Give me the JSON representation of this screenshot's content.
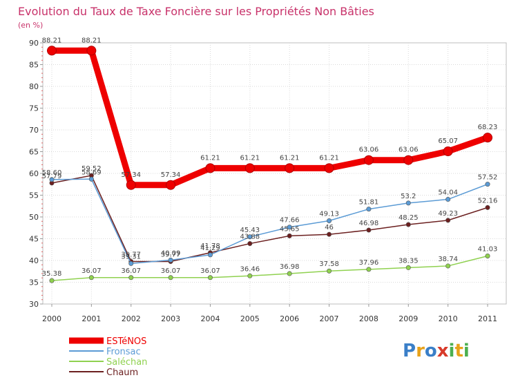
{
  "chart_data": {
    "type": "line",
    "title": "Evolution du Taux de Taxe Foncière sur les Propriétés Non Bâties",
    "ylabel": "(en %)",
    "xlabel": "",
    "ylim": [
      30,
      90
    ],
    "yticks": [
      "30",
      "35",
      "40",
      "45",
      "50",
      "55",
      "60",
      "65",
      "70",
      "75",
      "80",
      "85",
      "90"
    ],
    "categories": [
      "2000",
      "2001",
      "2002",
      "2003",
      "2004",
      "2005",
      "2006",
      "2007",
      "2008",
      "2009",
      "2010",
      "2011"
    ],
    "series": [
      {
        "name": "ESTéNOS",
        "color": "#ee0000",
        "values": [
          88.21,
          88.21,
          57.34,
          57.34,
          61.21,
          61.21,
          61.21,
          61.21,
          63.06,
          63.06,
          65.07,
          68.23
        ],
        "labels": [
          "88.21",
          "88.21",
          "57.34",
          "57.34",
          "61.21",
          "61.21",
          "61.21",
          "61.21",
          "63.06",
          "63.06",
          "65.07",
          "68.23"
        ]
      },
      {
        "name": "Fronsac",
        "color": "#5b9bd5",
        "values": [
          58.6,
          58.69,
          39.31,
          40.09,
          41.29,
          45.43,
          47.66,
          49.13,
          51.81,
          53.2,
          54.04,
          57.52
        ],
        "labels": [
          "58.60",
          "58.69",
          "39.31",
          "40.09",
          "41.29",
          "45.43",
          "47.66",
          "49.13",
          "51.81",
          "53.2",
          "54.04",
          "57.52"
        ]
      },
      {
        "name": "Saléchan",
        "color": "#8fd14f",
        "values": [
          35.38,
          36.07,
          36.07,
          36.07,
          36.07,
          36.46,
          36.98,
          37.58,
          37.96,
          38.35,
          38.74,
          41.03
        ],
        "labels": [
          "35.38",
          "36.07",
          "36.07",
          "36.07",
          "36.07",
          "36.46",
          "36.98",
          "37.58",
          "37.96",
          "38.35",
          "38.74",
          "41.03"
        ]
      },
      {
        "name": "Chaum",
        "color": "#6b1f1f",
        "values": [
          57.79,
          59.52,
          39.77,
          39.77,
          41.78,
          43.88,
          45.65,
          46,
          46.98,
          48.25,
          49.23,
          52.16
        ],
        "labels": [
          "57.79",
          "59.52",
          "39.77",
          "39.77",
          "41.78",
          "43.88",
          "45.65",
          "46",
          "46.98",
          "48.25",
          "49.23",
          "52.16"
        ]
      }
    ],
    "legend_position": "bottom-left"
  },
  "brand": {
    "letters": [
      "P",
      "r",
      "o",
      "x",
      "i",
      "t",
      "i"
    ],
    "colors": [
      "#3a7fc8",
      "#e8a21a",
      "#3a7fc8",
      "#d83a2a",
      "#4caf50",
      "#e8a21a",
      "#4caf50"
    ]
  }
}
